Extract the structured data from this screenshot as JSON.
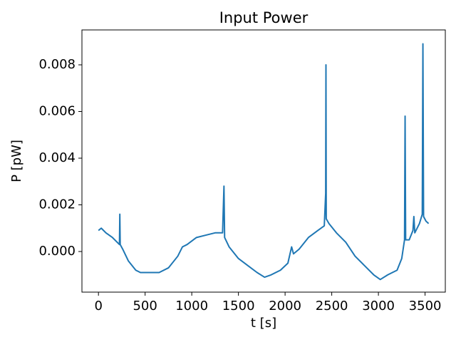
{
  "chart_data": {
    "type": "line",
    "title": "Input Power",
    "x_label": "t [s]",
    "y_label": "P [pW]",
    "x": [
      0,
      30,
      80,
      150,
      200,
      225,
      229,
      233,
      260,
      320,
      400,
      450,
      550,
      650,
      750,
      850,
      900,
      950,
      1050,
      1150,
      1250,
      1330,
      1345,
      1352,
      1400,
      1500,
      1600,
      1700,
      1780,
      1850,
      1950,
      2030,
      2070,
      2090,
      2150,
      2250,
      2350,
      2420,
      2435,
      2438,
      2441,
      2470,
      2550,
      2650,
      2750,
      2850,
      2950,
      3020,
      3100,
      3200,
      3250,
      3280,
      3286,
      3292,
      3330,
      3370,
      3380,
      3390,
      3440,
      3470,
      3477,
      3484,
      3510,
      3538
    ],
    "series": [
      {
        "name": "P",
        "color": "#1f77b4",
        "values": [
          0.0009,
          0.001,
          0.0008,
          0.0006,
          0.0004,
          0.0003,
          0.0016,
          0.0003,
          0.0001,
          -0.0004,
          -0.0008,
          -0.0009,
          -0.0009,
          -0.0009,
          -0.0007,
          -0.0002,
          0.0002,
          0.0003,
          0.0006,
          0.0007,
          0.0008,
          0.0008,
          0.0028,
          0.0006,
          0.0002,
          -0.0003,
          -0.0006,
          -0.0009,
          -0.0011,
          -0.001,
          -0.0008,
          -0.0005,
          0.0002,
          -0.0001,
          0.0001,
          0.0006,
          0.0009,
          0.0011,
          0.0025,
          0.008,
          0.0014,
          0.0012,
          0.0008,
          0.0004,
          -0.0002,
          -0.0006,
          -0.001,
          -0.0012,
          -0.001,
          -0.0008,
          -0.0003,
          0.0005,
          0.0058,
          0.0005,
          0.0005,
          0.0009,
          0.0015,
          0.0008,
          0.0012,
          0.0016,
          0.0089,
          0.0015,
          0.0013,
          0.0012
        ]
      }
    ],
    "xlim": [
      -177,
      3717
    ],
    "ylim": [
      -0.00174,
      0.009496
    ],
    "xticks": [
      0,
      500,
      1000,
      1500,
      2000,
      2500,
      3000,
      3500
    ],
    "yticks": [
      {
        "value": 0,
        "label": "0.000"
      },
      {
        "value": 0.002,
        "label": "0.002"
      },
      {
        "value": 0.004,
        "label": "0.004"
      },
      {
        "value": 0.006,
        "label": "0.006"
      },
      {
        "value": 0.008,
        "label": "0.008"
      }
    ]
  }
}
